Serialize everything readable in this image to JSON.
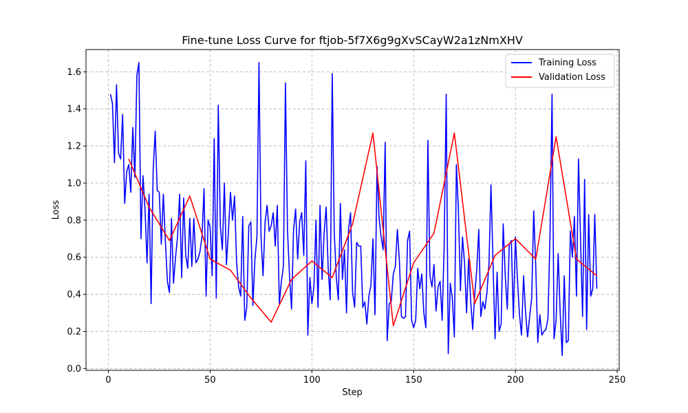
{
  "chart_data": {
    "type": "line",
    "title": "Fine-tune Loss Curve for ftjob-5f7X6g9gXvSCayW2a1zNmXHV",
    "xlabel": "Step",
    "ylabel": "Loss",
    "xlim": [
      -11,
      251
    ],
    "ylim": [
      -0.01,
      1.72
    ],
    "xticks": [
      "0",
      "50",
      "100",
      "150",
      "200",
      "250"
    ],
    "yticks": [
      "0.0",
      "0.2",
      "0.4",
      "0.6",
      "0.8",
      "1.0",
      "1.2",
      "1.4",
      "1.6"
    ],
    "grid": true,
    "legend_position": "top-right",
    "series": [
      {
        "name": "Training Loss",
        "color": "#0000ff",
        "x": [
          1,
          2,
          3,
          4,
          5,
          6,
          7,
          8,
          9,
          10,
          11,
          12,
          13,
          14,
          15,
          16,
          17,
          18,
          19,
          20,
          21,
          22,
          23,
          24,
          25,
          26,
          27,
          28,
          29,
          30,
          31,
          32,
          33,
          34,
          35,
          36,
          37,
          38,
          39,
          40,
          41,
          42,
          43,
          44,
          45,
          46,
          47,
          48,
          49,
          50,
          51,
          52,
          53,
          54,
          55,
          56,
          57,
          58,
          59,
          60,
          61,
          62,
          63,
          64,
          65,
          66,
          67,
          68,
          69,
          70,
          71,
          72,
          73,
          74,
          75,
          76,
          77,
          78,
          79,
          80,
          81,
          82,
          83,
          84,
          85,
          86,
          87,
          88,
          89,
          90,
          91,
          92,
          93,
          94,
          95,
          96,
          97,
          98,
          99,
          100,
          101,
          102,
          103,
          104,
          105,
          106,
          107,
          108,
          109,
          110,
          111,
          112,
          113,
          114,
          115,
          116,
          117,
          118,
          119,
          120,
          121,
          122,
          123,
          124,
          125,
          126,
          127,
          128,
          129,
          130,
          131,
          132,
          133,
          134,
          135,
          136,
          137,
          138,
          139,
          140,
          141,
          142,
          143,
          144,
          145,
          146,
          147,
          148,
          149,
          150,
          151,
          152,
          153,
          154,
          155,
          156,
          157,
          158,
          159,
          160,
          161,
          162,
          163,
          164,
          165,
          166,
          167,
          168,
          169,
          170,
          171,
          172,
          173,
          174,
          175,
          176,
          177,
          178,
          179,
          180,
          181,
          182,
          183,
          184,
          185,
          186,
          187,
          188,
          189,
          190,
          191,
          192,
          193,
          194,
          195,
          196,
          197,
          198,
          199,
          200,
          201,
          202,
          203,
          204,
          205,
          206,
          207,
          208,
          209,
          210,
          211,
          212,
          213,
          214,
          215,
          216,
          217,
          218,
          219,
          220,
          221,
          222,
          223,
          224,
          225,
          226,
          227,
          228,
          229,
          230,
          231,
          232,
          233,
          234,
          235,
          236,
          237,
          238,
          239,
          240
        ],
        "y": [
          1.48,
          1.43,
          1.11,
          1.53,
          1.16,
          1.13,
          1.37,
          0.89,
          1.06,
          1.1,
          0.95,
          1.3,
          1.03,
          1.58,
          1.65,
          0.7,
          1.04,
          0.86,
          0.57,
          0.94,
          0.35,
          1.07,
          1.28,
          0.96,
          0.95,
          0.67,
          0.94,
          0.69,
          0.47,
          0.41,
          0.81,
          0.46,
          0.6,
          0.71,
          0.94,
          0.49,
          0.92,
          0.61,
          0.54,
          0.81,
          0.55,
          0.81,
          0.57,
          0.59,
          0.63,
          0.71,
          0.97,
          0.39,
          0.8,
          0.76,
          0.5,
          1.24,
          0.38,
          1.42,
          0.77,
          0.64,
          1.0,
          0.56,
          0.74,
          0.95,
          0.8,
          0.93,
          0.57,
          0.44,
          0.39,
          0.82,
          0.26,
          0.33,
          0.77,
          0.79,
          0.34,
          0.59,
          0.71,
          1.65,
          0.71,
          0.5,
          0.79,
          0.88,
          0.74,
          0.77,
          0.84,
          0.66,
          0.88,
          0.35,
          0.47,
          0.55,
          1.54,
          0.75,
          0.5,
          0.32,
          0.75,
          0.86,
          0.59,
          0.79,
          0.84,
          0.61,
          1.12,
          0.18,
          0.49,
          0.35,
          0.44,
          0.8,
          0.33,
          0.88,
          0.48,
          0.73,
          0.87,
          0.54,
          0.37,
          1.59,
          0.73,
          0.49,
          0.37,
          0.89,
          0.48,
          0.64,
          0.3,
          0.75,
          0.84,
          0.41,
          0.33,
          0.68,
          0.66,
          0.66,
          0.33,
          0.36,
          0.24,
          0.39,
          0.45,
          0.7,
          0.29,
          1.09,
          0.81,
          0.71,
          0.64,
          1.22,
          0.15,
          0.35,
          0.36,
          0.51,
          0.55,
          0.75,
          0.58,
          0.28,
          0.27,
          0.28,
          0.69,
          0.74,
          0.26,
          0.22,
          0.26,
          0.54,
          0.43,
          0.51,
          0.3,
          0.22,
          1.23,
          0.5,
          0.44,
          0.56,
          0.31,
          0.44,
          0.47,
          0.26,
          0.66,
          1.48,
          0.08,
          0.46,
          0.38,
          0.17,
          1.1,
          0.85,
          0.42,
          0.71,
          0.57,
          0.3,
          0.59,
          0.37,
          0.21,
          0.4,
          0.53,
          0.75,
          0.28,
          0.36,
          0.32,
          0.41,
          0.56,
          0.99,
          0.57,
          0.16,
          0.52,
          0.2,
          0.24,
          0.78,
          0.5,
          0.32,
          0.67,
          0.69,
          0.27,
          0.71,
          0.48,
          0.29,
          0.18,
          0.5,
          0.3,
          0.17,
          0.28,
          0.38,
          0.85,
          0.55,
          0.14,
          0.29,
          0.18,
          0.2,
          0.21,
          0.27,
          0.72,
          1.48,
          0.16,
          0.26,
          0.62,
          0.3,
          0.07,
          0.5,
          0.14,
          0.15,
          0.74,
          0.6,
          0.82,
          0.39,
          1.13,
          0.7,
          0.28,
          1.02,
          0.21,
          0.83,
          0.39,
          0.43,
          0.83,
          0.43
        ]
      },
      {
        "name": "Validation Loss",
        "color": "#ff0000",
        "x": [
          10,
          20,
          30,
          40,
          50,
          60,
          70,
          80,
          90,
          100,
          110,
          120,
          130,
          140,
          150,
          160,
          170,
          180,
          190,
          200,
          210,
          220,
          230,
          240
        ],
        "y": [
          1.13,
          0.87,
          0.69,
          0.93,
          0.59,
          0.53,
          0.38,
          0.25,
          0.48,
          0.58,
          0.49,
          0.78,
          1.27,
          0.23,
          0.57,
          0.73,
          1.27,
          0.35,
          0.61,
          0.7,
          0.59,
          1.25,
          0.59,
          0.5
        ]
      }
    ]
  }
}
